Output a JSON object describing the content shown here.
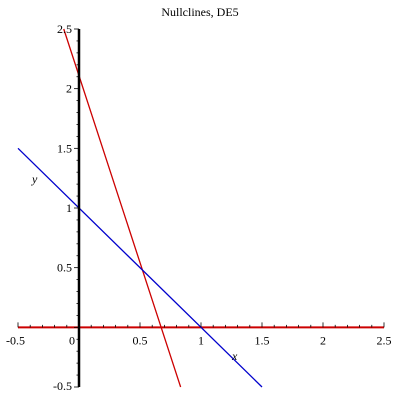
{
  "chart_data": {
    "type": "line",
    "title": "Nullclines, DE5",
    "xlabel": "x",
    "ylabel": "y",
    "xlim": [
      -0.5,
      2.5
    ],
    "ylim": [
      -0.5,
      2.5
    ],
    "x_ticks": [
      -0.5,
      0,
      0.5,
      1,
      1.5,
      2,
      2.5
    ],
    "x_tick_labels": [
      "-0.5",
      "0",
      "0.5",
      "1",
      "1.5",
      "2",
      "2.5"
    ],
    "y_ticks": [
      -0.5,
      0.5,
      1,
      1.5,
      2,
      2.5
    ],
    "y_tick_labels": [
      "-0.5",
      "0.5",
      "1",
      "1.5",
      "2",
      "2.5"
    ],
    "grid": false,
    "series": [
      {
        "color": "#cc0000",
        "x": [
          -0.5,
          2.5
        ],
        "y": [
          0,
          0
        ]
      },
      {
        "color": "#cc0000",
        "x": [
          -0.125,
          0.833
        ],
        "y": [
          2.5,
          -0.5
        ]
      },
      {
        "color": "#0000cc",
        "x": [
          -0.5,
          1.5
        ],
        "y": [
          1.5,
          -0.5
        ]
      }
    ]
  }
}
